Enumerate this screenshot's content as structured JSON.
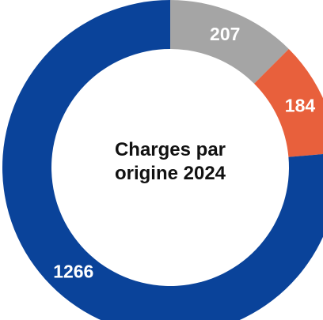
{
  "chart_data": {
    "type": "donut",
    "title": "Charges par origine 2024",
    "categories": [
      null,
      null,
      null
    ],
    "values": [
      207,
      184,
      1266
    ],
    "colors": [
      "#a5a5a5",
      "#e8603c",
      "#0a439a"
    ]
  }
}
